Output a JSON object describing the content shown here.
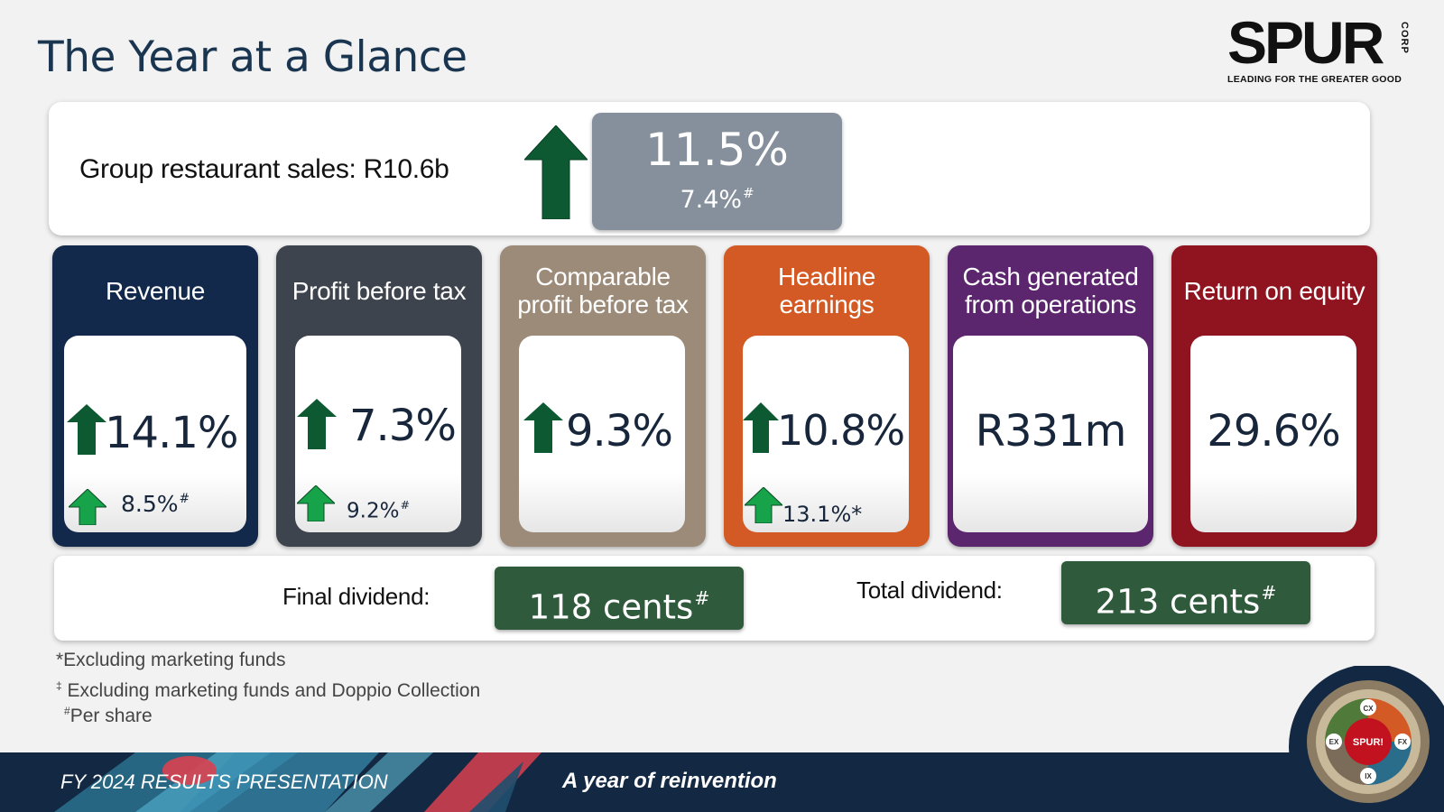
{
  "slide": {
    "title": "The Year at a Glance",
    "logo": {
      "word": "SPUR",
      "corp": "CORP",
      "tagline": "LEADING FOR THE GREATER GOOD"
    }
  },
  "sales": {
    "label": "Group restaurant sales: R10.6b",
    "change": "11.5%",
    "sub_change": "7.4%",
    "sub_mark": "#"
  },
  "cards": [
    {
      "title": "Revenue",
      "value": "14.1%",
      "sub": "8.5%",
      "sub_mark": "#",
      "color": "#13294b"
    },
    {
      "title": "Profit before tax",
      "value": "7.3%",
      "sub": "9.2%",
      "sub_mark": "#",
      "color": "#3d444d"
    },
    {
      "title": "Comparable profit before tax",
      "value": "9.3%",
      "color": "#9c8b78"
    },
    {
      "title": "Headline earnings",
      "value": "10.8%",
      "sub": "13.1%*",
      "color": "#d35a25"
    },
    {
      "title": "Cash generated from operations",
      "value": "R331m",
      "color": "#5b266d"
    },
    {
      "title": "Return on equity",
      "value": "29.6%",
      "color": "#8f1420"
    }
  ],
  "dividends": {
    "final_label": "Final dividend:",
    "final_value": "118 cents",
    "total_label": "Total dividend:",
    "total_value": "213 cents",
    "mark": "#"
  },
  "footnotes": {
    "star": "*Excluding marketing funds",
    "double": "Excluding marketing funds and Doppio Collection",
    "double_mark": "‡",
    "hash": "Per share",
    "hash_mark": "#"
  },
  "footer": {
    "left": "FY 2024 RESULTS PRESENTATION",
    "center": "A year of reinvention"
  },
  "emblem": {
    "center": "SPUR!",
    "segments": [
      "CX",
      "FX",
      "IX",
      "EX"
    ]
  },
  "colors": {
    "arrow_dark": "#0d5a32",
    "arrow_light": "#16a34a",
    "dividend_pill": "#2f5a3c",
    "sales_pill": "#85909c"
  }
}
